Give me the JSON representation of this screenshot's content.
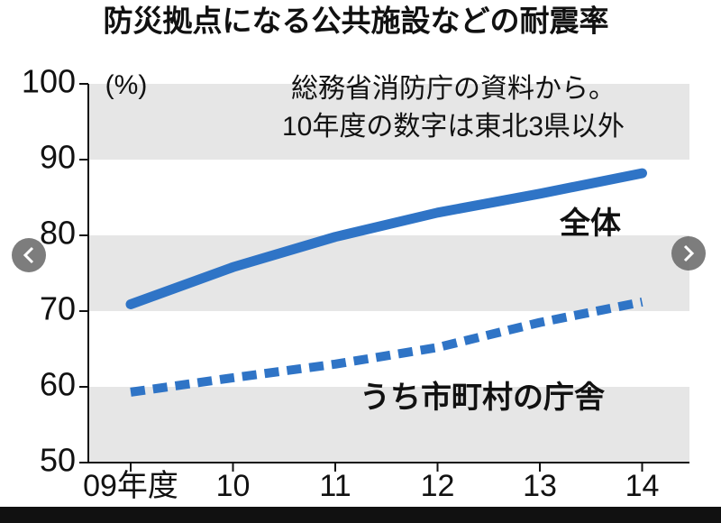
{
  "chart_data": {
    "type": "line",
    "title": "防災拠点になる公共施設などの耐震率",
    "y_label": "(%)",
    "annotations": [
      "総務省消防庁の資料から。",
      "10年度の数字は東北3県以外"
    ],
    "categories": [
      "09年度",
      "10",
      "11",
      "12",
      "13",
      "14"
    ],
    "series": [
      {
        "name": "全体",
        "color": "#2f74c6",
        "line_style": "solid",
        "values": [
          70.9,
          75.8,
          79.8,
          83.0,
          85.5,
          88.2
        ]
      },
      {
        "name": "うち市町村の庁舎",
        "color": "#2f74c6",
        "line_style": "dashed",
        "values": [
          59.3,
          61.2,
          63.0,
          65.2,
          68.5,
          71.2
        ]
      }
    ],
    "ylim": [
      50,
      100
    ],
    "yticks": [
      50,
      60,
      70,
      80,
      90,
      100
    ],
    "band_color": "#e6e6e6"
  }
}
